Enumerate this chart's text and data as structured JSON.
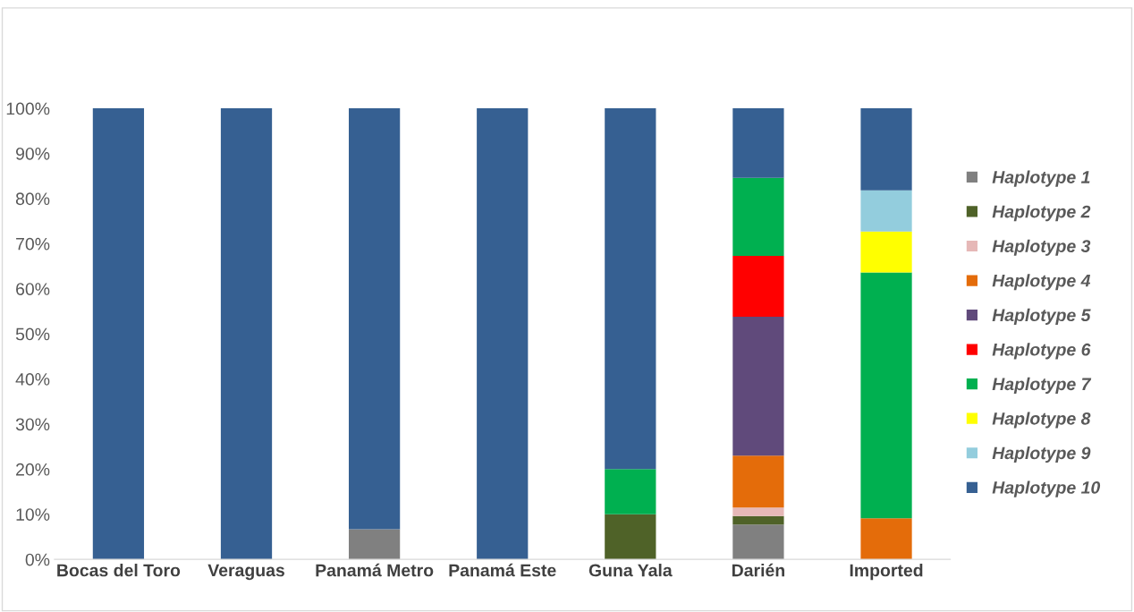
{
  "chart_data": {
    "type": "bar",
    "stacked": true,
    "categories": [
      "Bocas del Toro",
      "Veraguas",
      "Panamá Metro",
      "Panamá Este",
      "Guna Yala",
      "Darién",
      "Imported"
    ],
    "series": [
      {
        "name": "Haplotype 1",
        "color": "#808080",
        "values": [
          0,
          0,
          6.7,
          0,
          0,
          7.7,
          0
        ]
      },
      {
        "name": "Haplotype 2",
        "color": "#4f6228",
        "values": [
          0,
          0,
          0,
          0,
          10,
          1.9,
          0
        ]
      },
      {
        "name": "Haplotype 3",
        "color": "#e6b8b7",
        "values": [
          0,
          0,
          0,
          0,
          0,
          1.9,
          0
        ]
      },
      {
        "name": "Haplotype 4",
        "color": "#e46c0a",
        "values": [
          0,
          0,
          0,
          0,
          0,
          11.5,
          9.1
        ]
      },
      {
        "name": "Haplotype 5",
        "color": "#604a7b",
        "values": [
          0,
          0,
          0,
          0,
          0,
          30.8,
          0
        ]
      },
      {
        "name": "Haplotype 6",
        "color": "#ff0000",
        "values": [
          0,
          0,
          0,
          0,
          0,
          13.5,
          0
        ]
      },
      {
        "name": "Haplotype 7",
        "color": "#00b050",
        "values": [
          0,
          0,
          0,
          0,
          10,
          17.3,
          54.5
        ]
      },
      {
        "name": "Haplotype 8",
        "color": "#ffff00",
        "values": [
          0,
          0,
          0,
          0,
          0,
          0,
          9.1
        ]
      },
      {
        "name": "Haplotype 9",
        "color": "#93cddd",
        "values": [
          0,
          0,
          0,
          0,
          0,
          0,
          9.1
        ]
      },
      {
        "name": "Haplotype 10",
        "color": "#366092",
        "values": [
          100,
          100,
          93.3,
          100,
          80,
          15.4,
          18.2
        ]
      }
    ],
    "ylim": [
      0,
      100
    ],
    "yticks": [
      {
        "value": 0,
        "label": "0%"
      },
      {
        "value": 10,
        "label": "10%"
      },
      {
        "value": 20,
        "label": "20%"
      },
      {
        "value": 30,
        "label": "30%"
      },
      {
        "value": 40,
        "label": "40%"
      },
      {
        "value": 50,
        "label": "50%"
      },
      {
        "value": 60,
        "label": "60%"
      },
      {
        "value": 70,
        "label": "70%"
      },
      {
        "value": 80,
        "label": "80%"
      },
      {
        "value": 90,
        "label": "90%"
      },
      {
        "value": 100,
        "label": "100%"
      }
    ],
    "legend": "right",
    "grid": false
  }
}
